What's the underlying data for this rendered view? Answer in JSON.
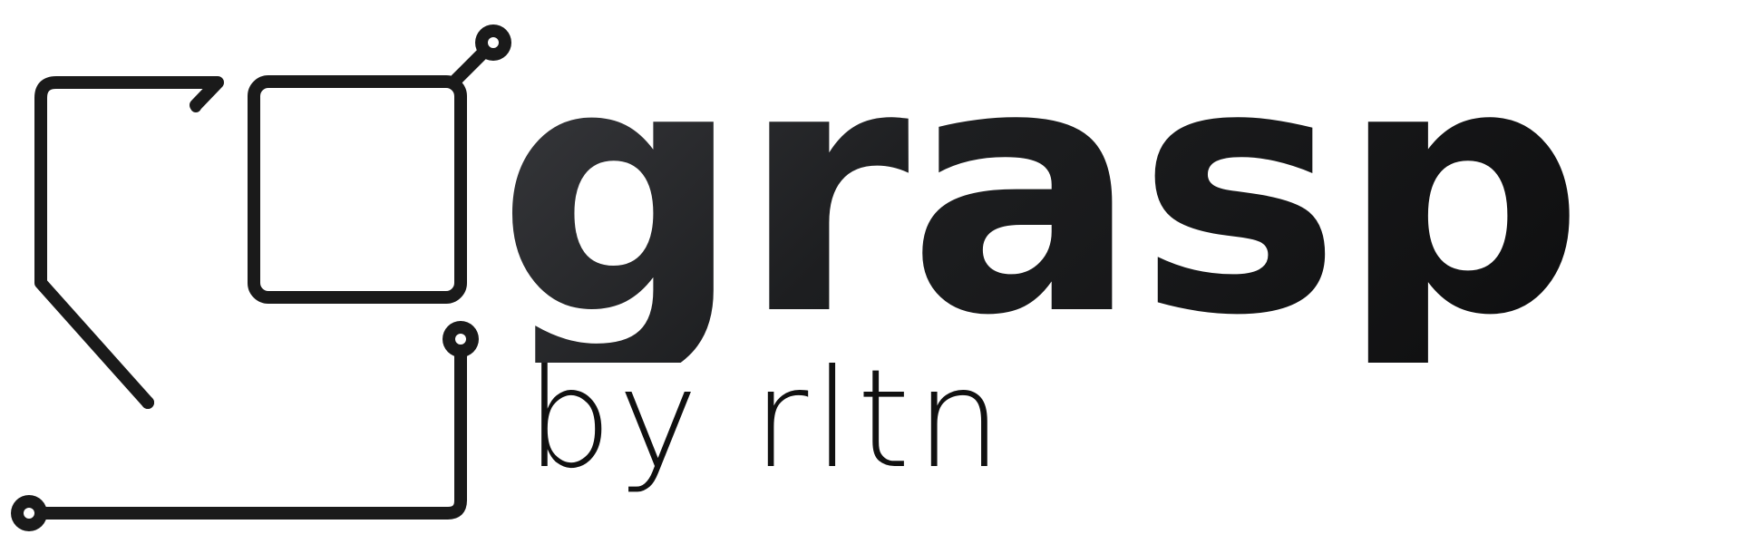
{
  "brand": {
    "name": "grasp",
    "byline": "by rltn"
  },
  "icons": {
    "mark": "circuit-frame-icon"
  },
  "colors": {
    "ink": "#111111",
    "gradient_light": "#3a3b3f",
    "gradient_dark": "#0e0e0f",
    "background": "#ffffff"
  }
}
